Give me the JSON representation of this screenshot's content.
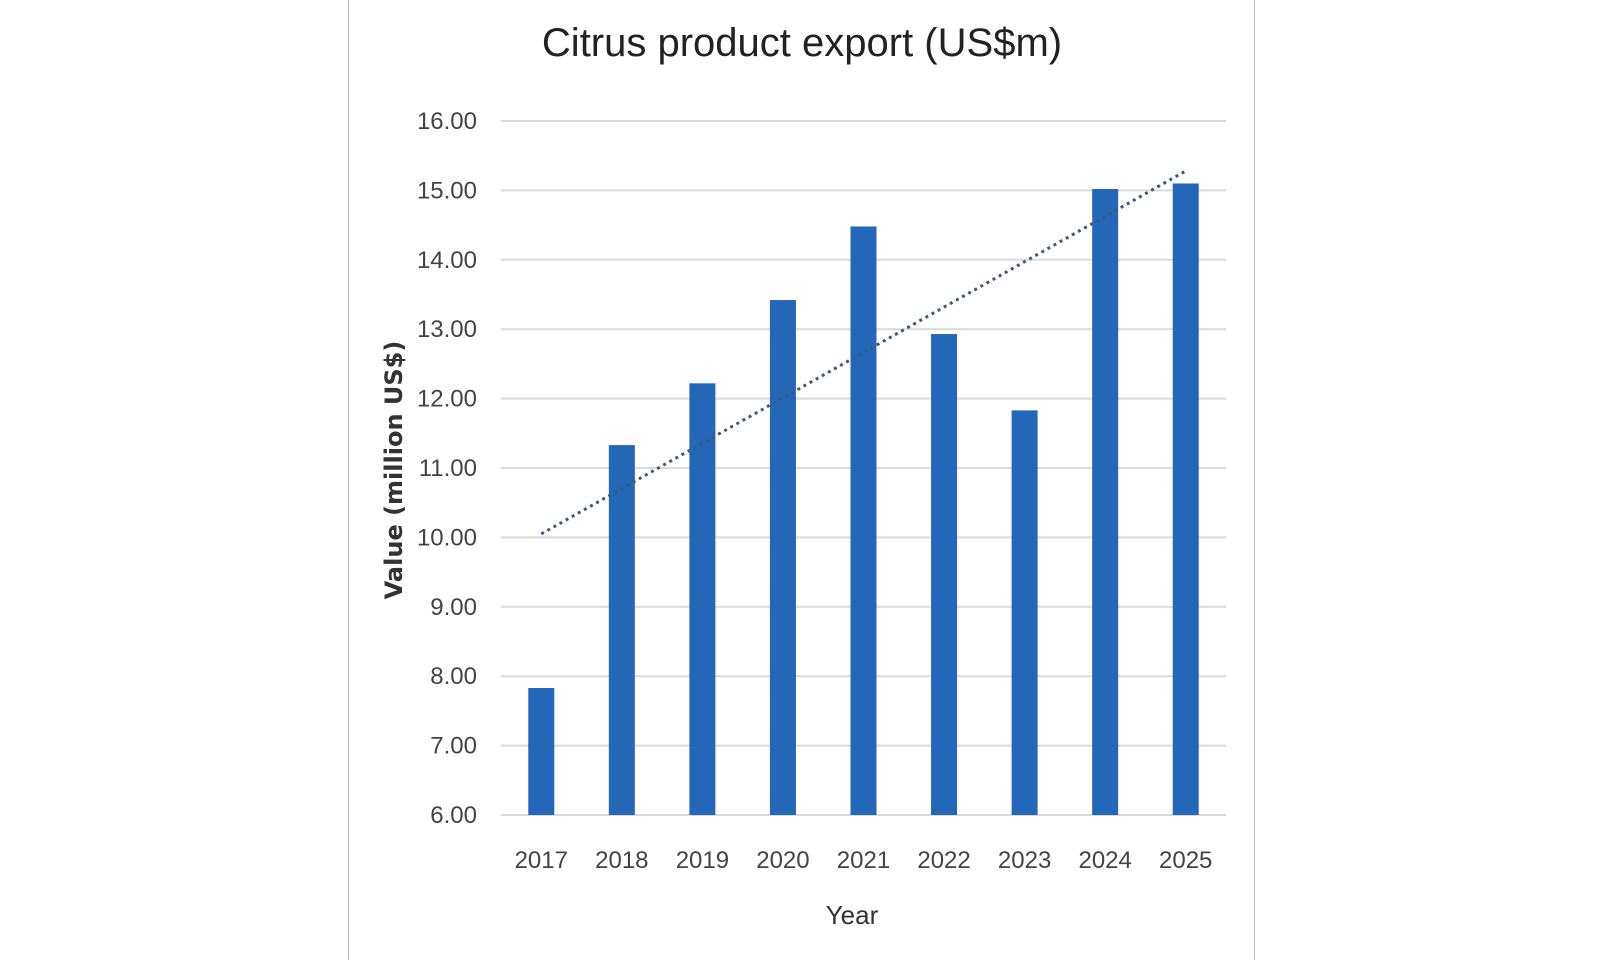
{
  "chart_data": {
    "type": "bar",
    "title": "Citrus product export (US$m)",
    "xlabel": "Year",
    "ylabel": "Value (million US$)",
    "categories": [
      "2017",
      "2018",
      "2019",
      "2020",
      "2021",
      "2022",
      "2023",
      "2024",
      "2025"
    ],
    "values": [
      7.83,
      11.33,
      12.22,
      13.42,
      14.48,
      12.93,
      11.83,
      15.02,
      15.1
    ],
    "ylim": [
      6,
      16
    ],
    "yticks": [
      "6.00",
      "7.00",
      "8.00",
      "9.00",
      "10.00",
      "11.00",
      "12.00",
      "13.00",
      "14.00",
      "15.00",
      "16.00"
    ],
    "grid": true,
    "legend": "none",
    "trendline": {
      "style": "dotted",
      "type": "linear",
      "start": 10.05,
      "end": 15.28
    },
    "colors": {
      "bar": "#2467b8",
      "grid": "#d9d9d9",
      "trendline": "#3d5a7a"
    }
  }
}
